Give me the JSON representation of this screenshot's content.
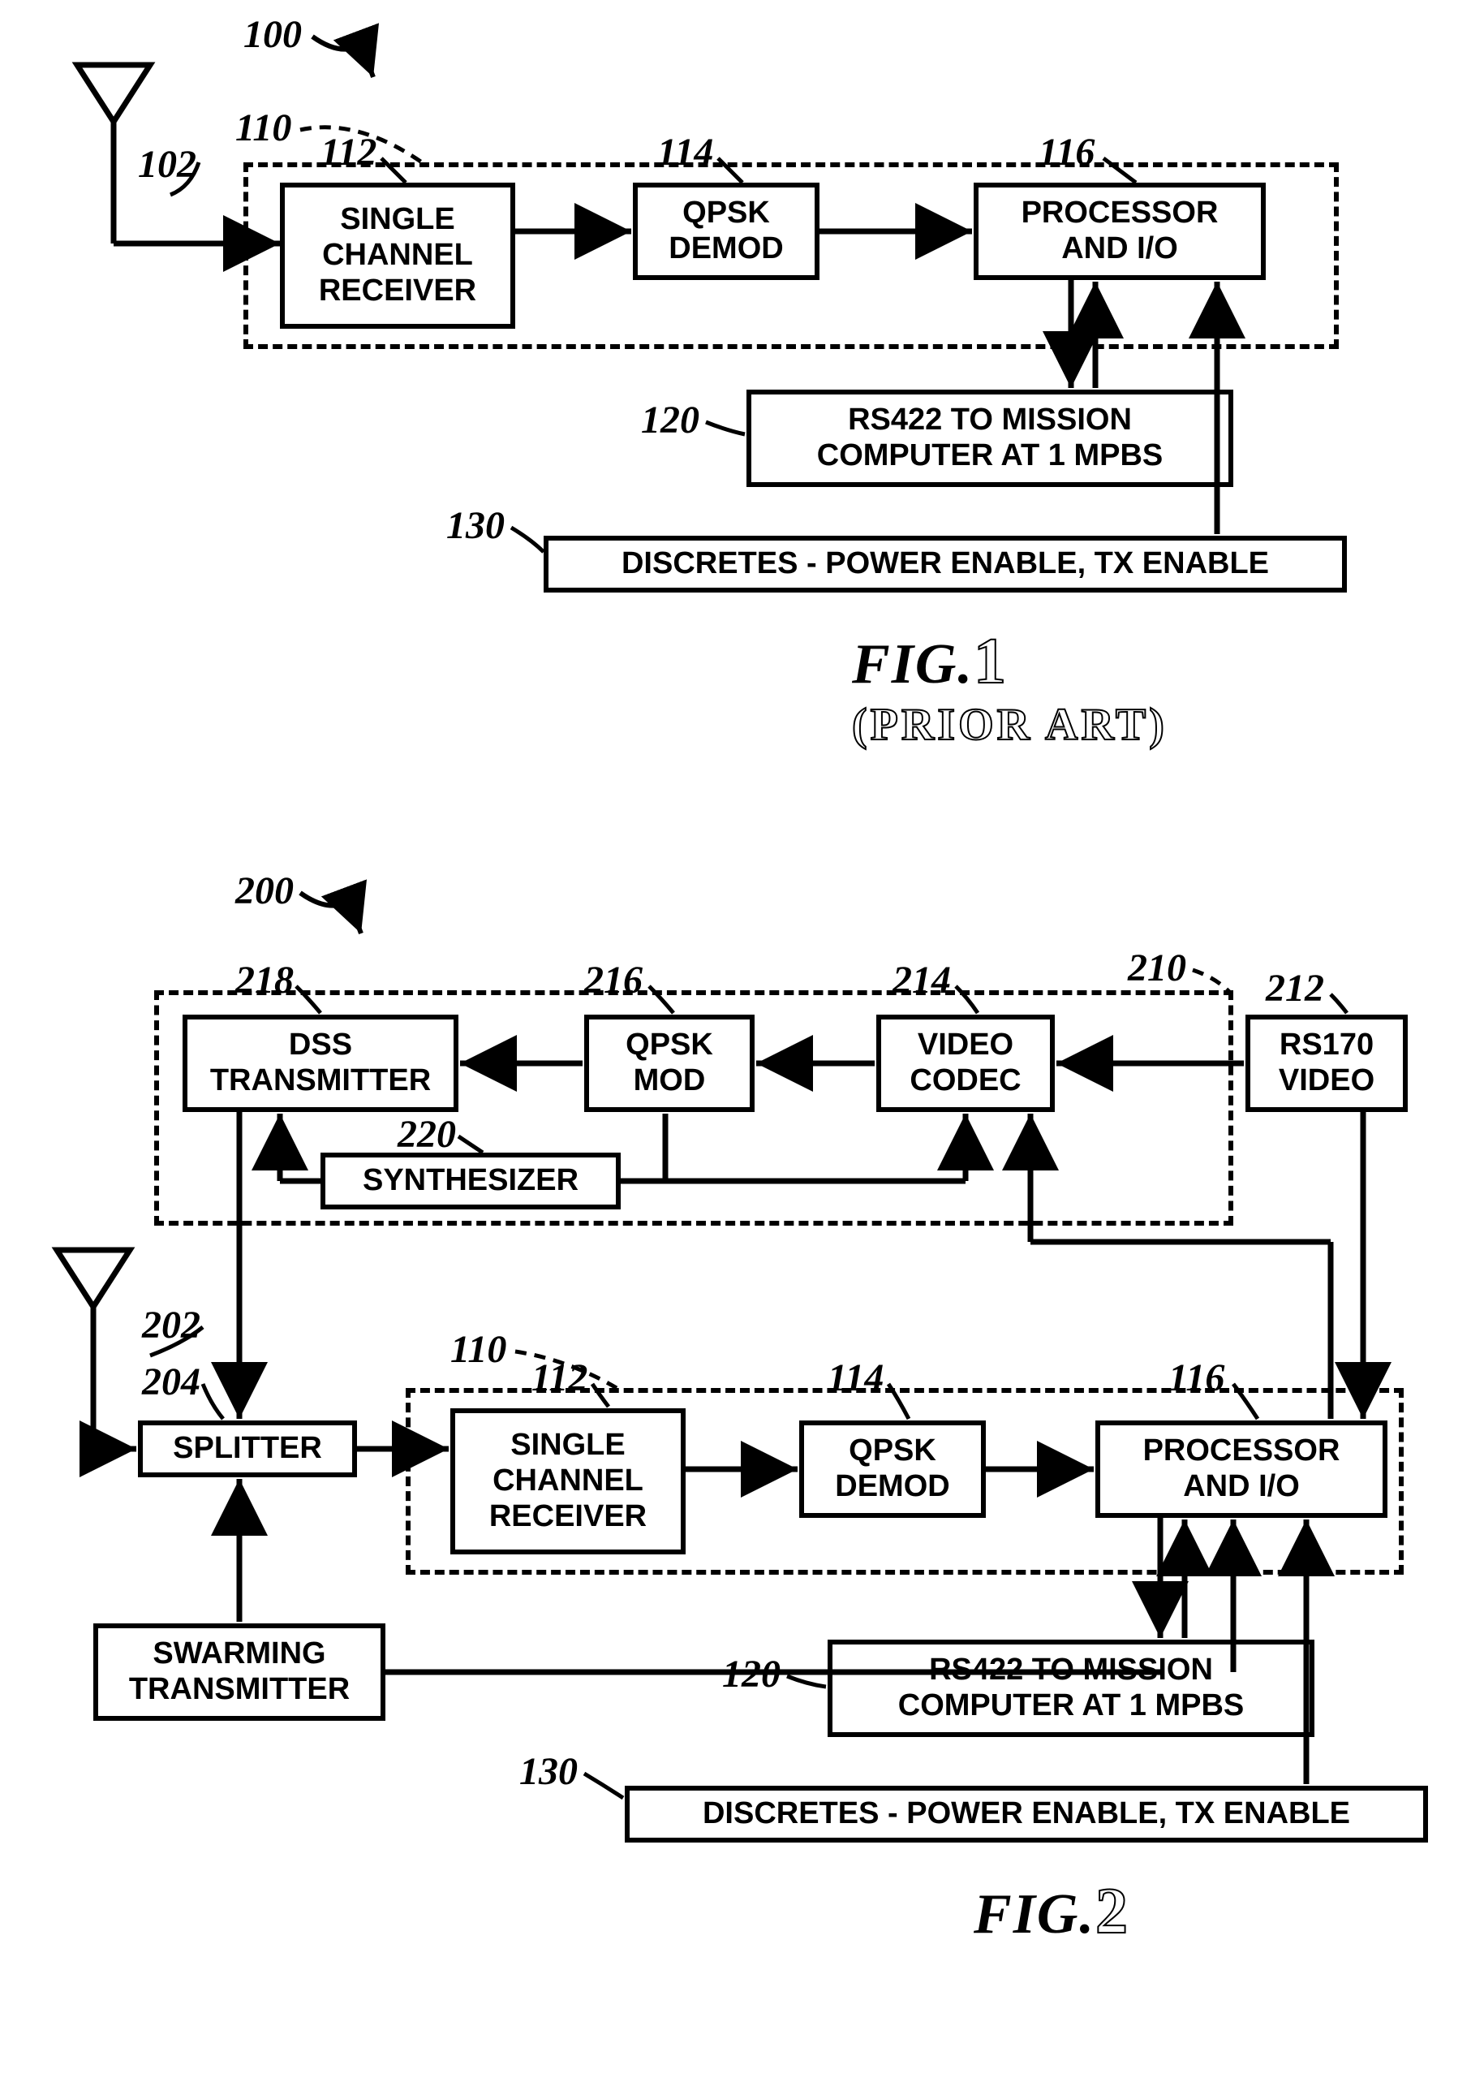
{
  "fig1": {
    "refs": {
      "r100": "100",
      "r102": "102",
      "r110": "110",
      "r112": "112",
      "r114": "114",
      "r116": "116",
      "r120": "120",
      "r130": "130"
    },
    "blocks": {
      "receiver": "SINGLE\nCHANNEL\nRECEIVER",
      "demod": "QPSK\nDEMOD",
      "processor": "PROCESSOR\nAND I/O",
      "rs422": "RS422 TO MISSION\nCOMPUTER AT 1 MPBS",
      "discretes": "DISCRETES - POWER ENABLE, TX ENABLE"
    },
    "caption": {
      "fig": "FIG.",
      "num": "1",
      "sub": "(PRIOR ART)"
    },
    "style": {
      "block_border": "#000000",
      "block_bg": "#ffffff",
      "line_color": "#000000",
      "line_width": 6,
      "font_size_block": 38,
      "font_size_ref": 48,
      "font_size_caption": 70
    }
  },
  "fig2": {
    "refs": {
      "r200": "200",
      "r202": "202",
      "r204": "204",
      "r210": "210",
      "r212": "212",
      "r214": "214",
      "r216": "216",
      "r218": "218",
      "r220": "220",
      "r110": "110",
      "r112": "112",
      "r114": "114",
      "r116": "116",
      "r120": "120",
      "r130": "130"
    },
    "blocks": {
      "dss": "DSS\nTRANSMITTER",
      "qpskmod": "QPSK\nMOD",
      "codec": "VIDEO\nCODEC",
      "rs170": "RS170\nVIDEO",
      "synth": "SYNTHESIZER",
      "splitter": "SPLITTER",
      "receiver": "SINGLE\nCHANNEL\nRECEIVER",
      "demod": "QPSK\nDEMOD",
      "processor": "PROCESSOR\nAND I/O",
      "swarm": "SWARMING\nTRANSMITTER",
      "rs422": "RS422 TO MISSION\nCOMPUTER AT 1 MPBS",
      "discretes": "DISCRETES - POWER ENABLE, TX ENABLE"
    },
    "caption": {
      "fig": "FIG.",
      "num": "2"
    },
    "style": {
      "block_border": "#000000",
      "block_bg": "#ffffff",
      "line_color": "#000000",
      "line_width": 6,
      "font_size_block": 38,
      "font_size_ref": 48,
      "font_size_caption": 70
    }
  }
}
